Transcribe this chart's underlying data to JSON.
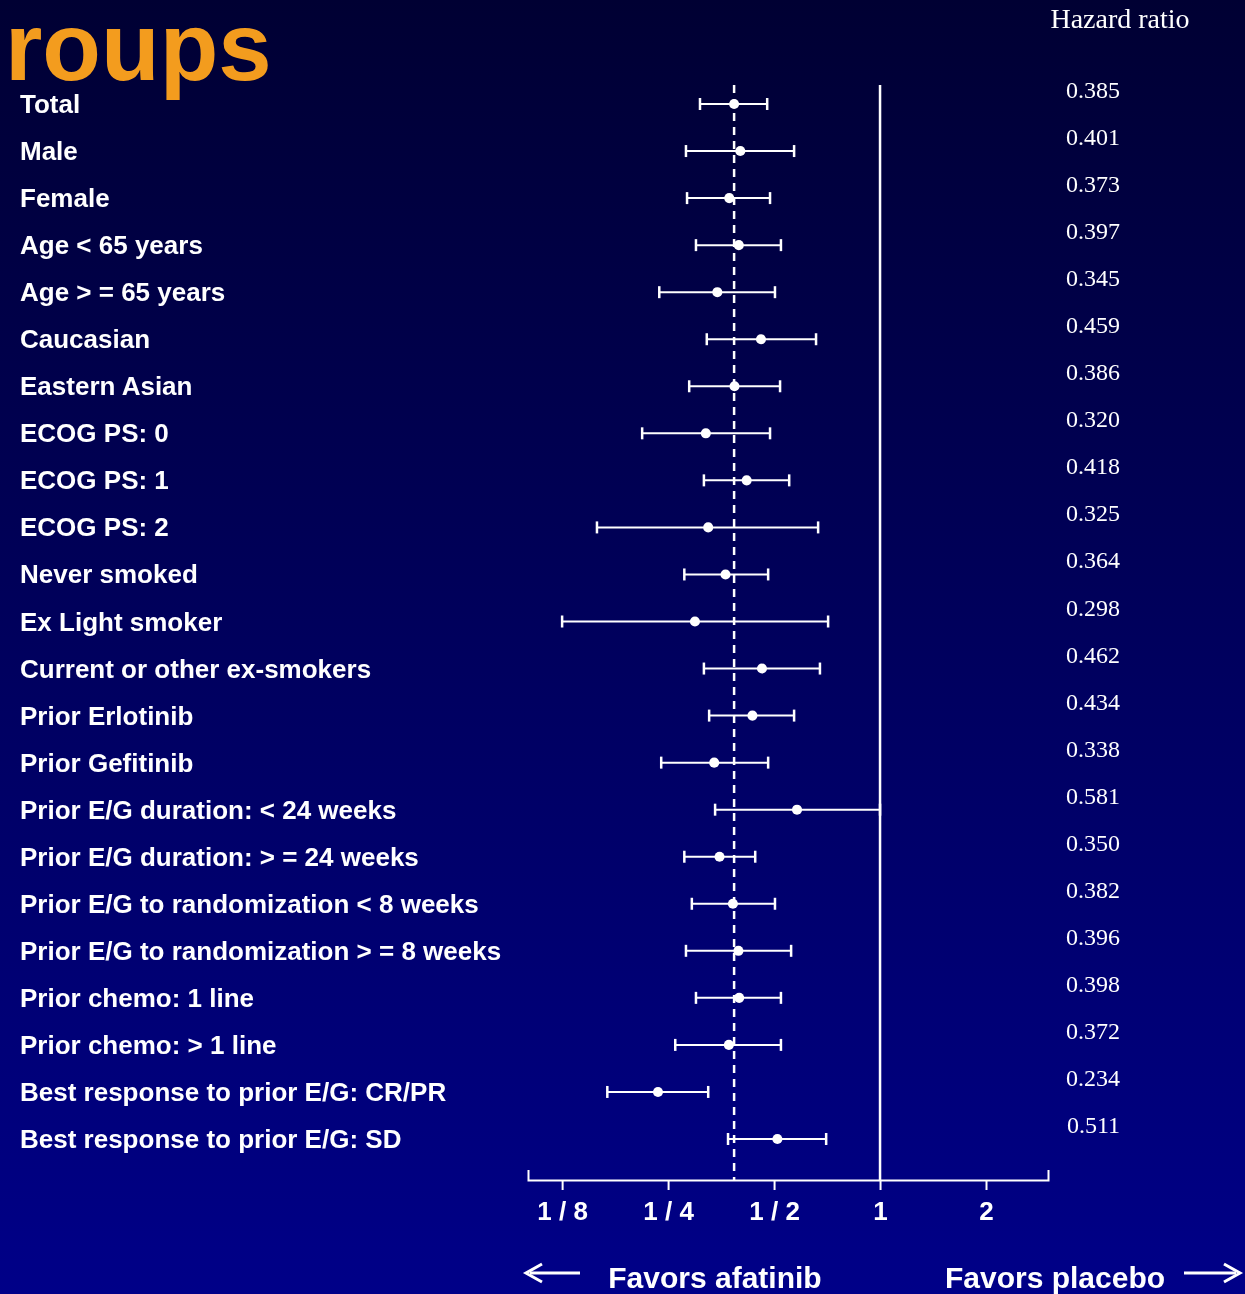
{
  "chart_data": {
    "type": "scatter",
    "orientation": "horizontal",
    "title": "roups",
    "categories": [
      "Total",
      "Male",
      "Female",
      "Age  <  65 years",
      "Age  > =  65 years",
      "Caucasian",
      "Eastern Asian",
      "ECOG PS: 0",
      "ECOG PS: 1",
      "ECOG PS: 2",
      "Never smoked",
      "Ex Light smoker",
      "Current or other ex-smokers",
      "Prior Erlotinib",
      "Prior Gefitinib",
      "Prior E/G duration:  <  24 weeks",
      "Prior E/G duration:  > =  24 weeks",
      "Prior E/G to randomization  <  8 weeks",
      "Prior E/G to randomization  > =  8 weeks",
      "Prior chemo: 1 line",
      "Prior chemo: > 1 line",
      "Best response to prior E/G: CR/PR",
      "Best response to prior E/G: SD"
    ],
    "series": [
      {
        "color": "#ffffff",
        "values": [
          0.385,
          0.401,
          0.373,
          0.397,
          0.345,
          0.459,
          0.386,
          0.32,
          0.418,
          0.325,
          0.364,
          0.298,
          0.462,
          0.434,
          0.338,
          0.581,
          0.35,
          0.382,
          0.396,
          0.398,
          0.372,
          0.234,
          0.511
        ],
        "errors": [
          [
            0.308,
            0.478
          ],
          [
            0.281,
            0.57
          ],
          [
            0.283,
            0.487
          ],
          [
            0.3,
            0.523
          ],
          [
            0.236,
            0.503
          ],
          [
            0.322,
            0.658
          ],
          [
            0.287,
            0.52
          ],
          [
            0.211,
            0.487
          ],
          [
            0.316,
            0.552
          ],
          [
            0.157,
            0.667
          ],
          [
            0.278,
            0.481
          ],
          [
            0.125,
            0.712
          ],
          [
            0.316,
            0.675
          ],
          [
            0.327,
            0.57
          ],
          [
            0.239,
            0.481
          ],
          [
            0.34,
            1.0
          ],
          [
            0.278,
            0.442
          ],
          [
            0.292,
            0.503
          ],
          [
            0.281,
            0.559
          ],
          [
            0.3,
            0.523
          ],
          [
            0.262,
            0.523
          ],
          [
            0.168,
            0.325
          ],
          [
            0.37,
            0.703
          ]
        ],
        "value_labels": [
          "0.385",
          "0.401",
          "0.373",
          "0.397",
          "0.345",
          "0.459",
          "0.386",
          "0.320",
          "0.418",
          "0.325",
          "0.364",
          "0.298",
          "0.462",
          "0.434",
          "0.338",
          "0.581",
          "0.350",
          "0.382",
          "0.396",
          "0.398",
          "0.372",
          "0.234",
          "0.511"
        ]
      }
    ],
    "xlim": [
      0.1,
      3
    ],
    "xticks": [
      {
        "value": 0.125,
        "label": "1 / 8"
      },
      {
        "value": 0.25,
        "label": "1 / 4"
      },
      {
        "value": 0.5,
        "label": "1 / 2"
      },
      1,
      2
    ],
    "log": "x",
    "marker": "circle",
    "ref_lines": [
      {
        "axis": "x",
        "value": 1,
        "label": null,
        "color": "#ffffff",
        "line_style": "solid"
      },
      {
        "axis": "x",
        "value": 0.385,
        "label": null,
        "color": "#ffffff",
        "line_style": "dashed"
      }
    ],
    "annotations": [
      "Hazard ratio",
      "Favors afatinib",
      "Favors placebo"
    ]
  }
}
